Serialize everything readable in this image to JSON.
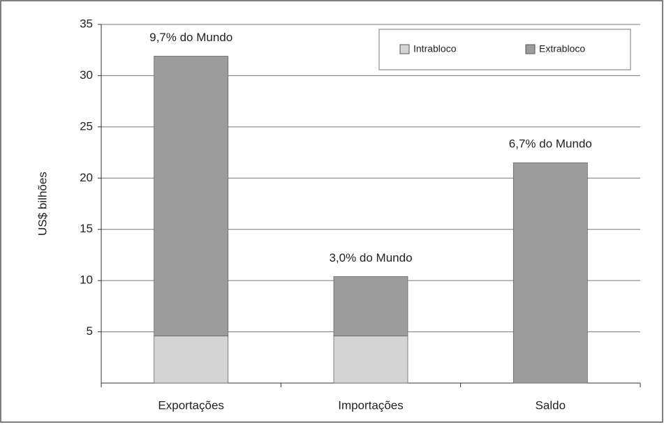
{
  "chart_data": {
    "type": "stacked_bar",
    "y_label": "US$ bilhões",
    "categories": [
      "Exportações",
      "Importações",
      "Saldo"
    ],
    "series": [
      {
        "name": "Intrabloco",
        "color": "#d4d4d4",
        "values": [
          4.6,
          4.6,
          0
        ]
      },
      {
        "name": "Extrabloco",
        "color": "#9c9c9c",
        "values": [
          27.3,
          5.8,
          21.5
        ]
      }
    ],
    "annotations": [
      "9,7% do Mundo",
      "3,0% do Mundo",
      "6,7% do Mundo"
    ],
    "ylim": [
      0,
      35
    ],
    "yticks": [
      5,
      10,
      15,
      20,
      25,
      30,
      35
    ],
    "grid": true,
    "legend": "top-right"
  }
}
